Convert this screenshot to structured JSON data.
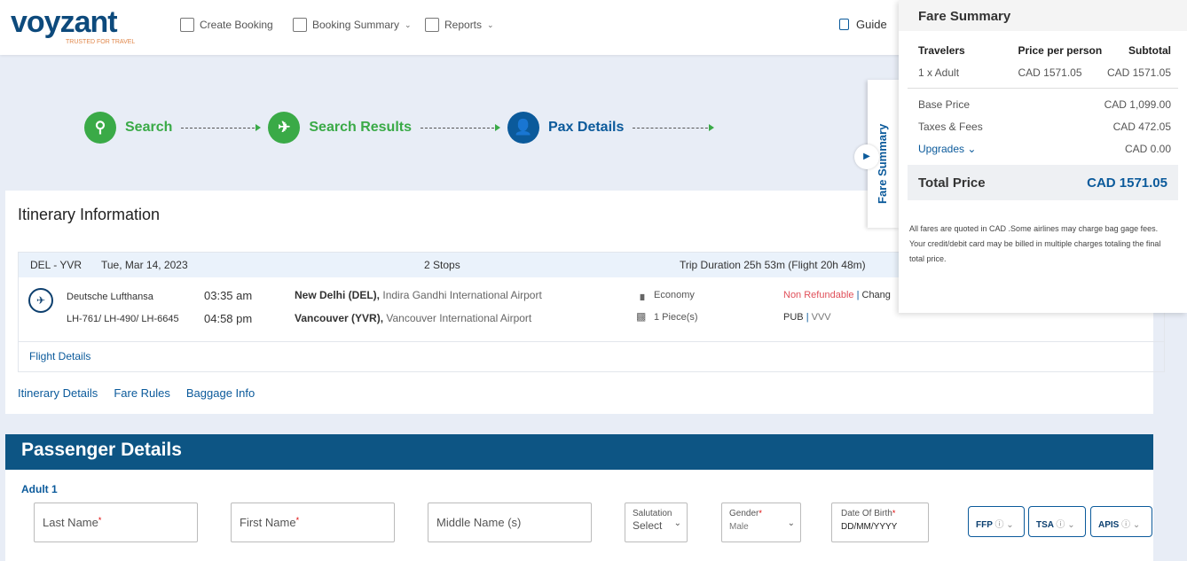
{
  "brand": {
    "name": "voyzant",
    "tagline": "TRUSTED FOR TRAVEL"
  },
  "nav": [
    {
      "label": "Create Booking",
      "icon": "create-booking-icon"
    },
    {
      "label": "Booking Summary",
      "icon": "booking-summary-icon"
    },
    {
      "label": "Reports",
      "icon": "reports-icon"
    }
  ],
  "guide": "Guide",
  "steps": [
    {
      "label": "Search",
      "icon": "search-icon",
      "color": "#3aaa47"
    },
    {
      "label": "Search Results",
      "icon": "plane-icon",
      "color": "#3aaa47"
    },
    {
      "label": "Pax Details",
      "icon": "passenger-icon",
      "color": "#0b5a9b"
    }
  ],
  "itinerary": {
    "title": "Itinerary Information",
    "route": "DEL - YVR",
    "date": "Tue, Mar 14, 2023",
    "stops": "2 Stops",
    "duration": "Trip Duration 25h 53m (Flight 20h 48m)",
    "airline": "Deutsche Lufthansa",
    "flights": "LH-761/ LH-490/ LH-6645",
    "dep_time": "03:35 am",
    "dep_city": "New Delhi (DEL),",
    "dep_airport": "Indira Gandhi International Airport",
    "arr_time": "04:58 pm",
    "arr_city": "Vancouver (YVR),",
    "arr_airport": "Vancouver International Airport",
    "cabin": "Economy",
    "baggage": "1 Piece(s)",
    "refund": "Non Refundable",
    "change": "Chang",
    "fare_code": "PUB",
    "fare_basis": "VVV",
    "flight_details": "Flight Details",
    "links": [
      "Itinerary Details",
      "Fare Rules",
      "Baggage Info"
    ]
  },
  "passenger": {
    "title": "Passenger Details",
    "adult": "Adult 1",
    "last_name": "Last Name",
    "first_name": "First Name",
    "middle_name": "Middle Name (s)",
    "salutation_label": "Salutation",
    "salutation_value": "Select",
    "gender_label": "Gender",
    "gender_value": "Male",
    "dob_label": "Date Of Birth",
    "dob_placeholder": "DD/MM/YYYY",
    "buttons": [
      "FFP",
      "TSA",
      "APIS"
    ]
  },
  "fare_tab": "Fare Summary",
  "fare": {
    "title": "Fare Summary",
    "headers": [
      "Travelers",
      "Price per person",
      "Subtotal"
    ],
    "row": [
      "1 x Adult",
      "CAD 1571.05",
      "CAD 1571.05"
    ],
    "base_label": "Base Price",
    "base": "CAD 1,099.00",
    "taxes_label": "Taxes & Fees",
    "taxes": "CAD 472.05",
    "upgrades_label": "Upgrades",
    "upgrades": "CAD 0.00",
    "total_label": "Total Price",
    "total": "CAD 1571.05",
    "note": "All fares are quoted in CAD .Some airlines may charge bag gage fees. Your credit/debit card may be billed in multiple charges totaling the final total price."
  }
}
